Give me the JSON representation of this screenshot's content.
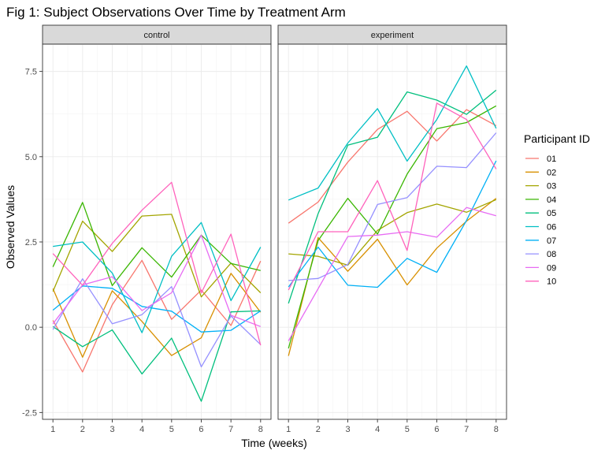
{
  "chart_data": {
    "type": "line",
    "title": "Fig 1: Subject Observations Over Time by Treatment Arm",
    "xlabel": "Time (weeks)",
    "ylabel": "Observed Values",
    "x": [
      1,
      2,
      3,
      4,
      5,
      6,
      7,
      8
    ],
    "x_ticks": [
      "1",
      "2",
      "3",
      "4",
      "5",
      "6",
      "7",
      "8"
    ],
    "y_ticks": [
      -2.5,
      0,
      2.5,
      5,
      7.5
    ],
    "y_tick_labels": [
      "-2.5",
      "0.0",
      "2.5",
      "5.0",
      "7.5"
    ],
    "xlim": [
      0.65,
      8.35
    ],
    "ylim": [
      -2.7,
      8.3
    ],
    "grid": true,
    "legend": {
      "title": "Participant ID",
      "placement": "right"
    },
    "facets": [
      {
        "label": "control",
        "series": [
          {
            "name": "01",
            "color": "#F8766D",
            "values": [
              0.2,
              -1.31,
              0.66,
              1.96,
              0.23,
              1.09,
              0.05,
              1.94
            ]
          },
          {
            "name": "02",
            "color": "#D89000",
            "values": [
              1.13,
              -0.88,
              1.07,
              0.17,
              -0.83,
              -0.31,
              1.58,
              0.44
            ]
          },
          {
            "name": "03",
            "color": "#A3A500",
            "values": [
              1.05,
              3.11,
              2.22,
              3.26,
              3.31,
              0.89,
              1.88,
              1.01
            ]
          },
          {
            "name": "04",
            "color": "#39B600",
            "values": [
              1.77,
              3.66,
              1.22,
              2.33,
              1.47,
              2.7,
              1.87,
              1.66
            ]
          },
          {
            "name": "05",
            "color": "#00BF7D",
            "values": [
              0.02,
              -0.57,
              -0.08,
              -1.37,
              -0.32,
              -2.17,
              0.45,
              0.48
            ]
          },
          {
            "name": "06",
            "color": "#00BFC4",
            "values": [
              2.37,
              2.5,
              1.59,
              -0.16,
              2.08,
              3.07,
              0.78,
              2.35
            ]
          },
          {
            "name": "07",
            "color": "#00B0F6",
            "values": [
              0.5,
              1.21,
              1.14,
              0.61,
              0.47,
              -0.14,
              -0.09,
              0.48
            ]
          },
          {
            "name": "08",
            "color": "#9590FF",
            "values": [
              -0.07,
              1.42,
              0.1,
              0.37,
              1.19,
              -1.16,
              0.33,
              -0.51
            ]
          },
          {
            "name": "09",
            "color": "#E76BF3",
            "values": [
              0.1,
              1.24,
              1.48,
              0.49,
              1.01,
              2.7,
              0.35,
              0.02
            ]
          },
          {
            "name": "10",
            "color": "#FF62BC",
            "values": [
              2.16,
              1.23,
              2.46,
              3.43,
              4.25,
              1.01,
              2.73,
              -0.53
            ]
          }
        ]
      },
      {
        "label": "experiment",
        "series": [
          {
            "name": "01",
            "color": "#F8766D",
            "values": [
              3.05,
              3.67,
              4.84,
              5.8,
              6.33,
              5.46,
              6.38,
              5.91
            ]
          },
          {
            "name": "02",
            "color": "#D89000",
            "values": [
              -0.84,
              2.63,
              1.64,
              2.58,
              1.24,
              2.32,
              3.11,
              3.78
            ]
          },
          {
            "name": "03",
            "color": "#A3A500",
            "values": [
              2.15,
              2.08,
              1.82,
              2.84,
              3.36,
              3.61,
              3.37,
              3.74
            ]
          },
          {
            "name": "04",
            "color": "#39B600",
            "values": [
              -0.62,
              2.54,
              3.78,
              2.73,
              4.49,
              5.82,
              6.0,
              6.49
            ]
          },
          {
            "name": "05",
            "color": "#00BF7D",
            "values": [
              0.7,
              3.33,
              5.34,
              5.57,
              6.9,
              6.66,
              6.24,
              6.95
            ]
          },
          {
            "name": "06",
            "color": "#00BFC4",
            "values": [
              3.73,
              4.08,
              5.4,
              6.41,
              4.87,
              6.09,
              7.66,
              5.83
            ]
          },
          {
            "name": "07",
            "color": "#00B0F6",
            "values": [
              1.18,
              2.35,
              1.23,
              1.17,
              2.02,
              1.61,
              3.13,
              4.88
            ]
          },
          {
            "name": "08",
            "color": "#9590FF",
            "values": [
              1.37,
              1.43,
              1.84,
              3.6,
              3.8,
              4.72,
              4.68,
              5.7
            ]
          },
          {
            "name": "09",
            "color": "#E76BF3",
            "values": [
              -0.4,
              1.13,
              2.66,
              2.7,
              2.8,
              2.64,
              3.51,
              3.27
            ]
          },
          {
            "name": "10",
            "color": "#FF62BC",
            "values": [
              1.09,
              2.8,
              2.8,
              4.3,
              2.25,
              6.57,
              6.09,
              4.64
            ]
          }
        ]
      }
    ]
  }
}
